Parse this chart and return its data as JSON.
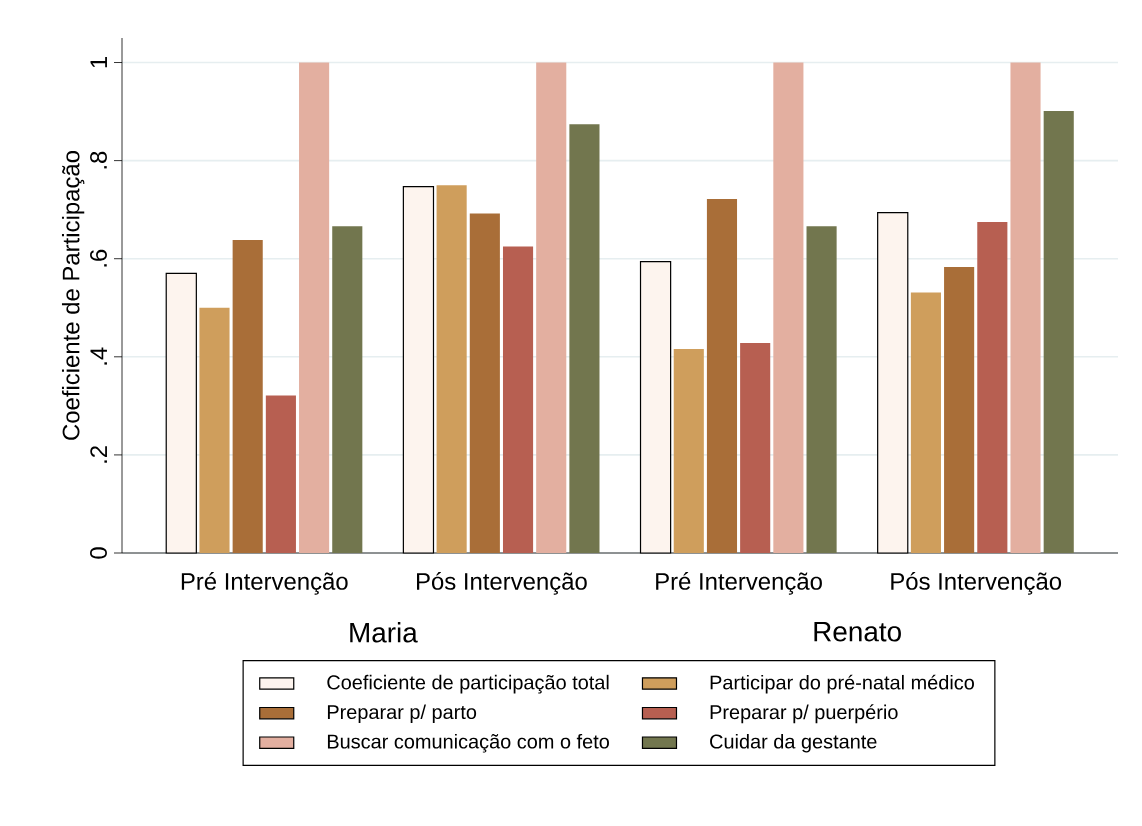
{
  "chart_data": {
    "type": "bar",
    "ylabel": "Coeficiente de Participação",
    "categories": [
      "Pré Intervenção",
      "Pós Intervenção",
      "Pré Intervenção",
      "Pós Intervenção"
    ],
    "series": [
      {
        "name": "Coeficiente de participação total",
        "color": "#fdf4ee",
        "values": [
          0.57,
          0.747,
          0.594,
          0.694
        ]
      },
      {
        "name": "Participar do pré-natal médico",
        "color": "#cf9e5c",
        "values": [
          0.5,
          0.75,
          0.416,
          0.531
        ]
      },
      {
        "name": "Preparar p/ parto",
        "color": "#a96e38",
        "values": [
          0.638,
          0.692,
          0.722,
          0.583
        ]
      },
      {
        "name": "Preparar p/ puerpério",
        "color": "#b75f51",
        "values": [
          0.321,
          0.625,
          0.428,
          0.675
        ]
      },
      {
        "name": "Buscar comunicação com o feto",
        "color": "#e3afa0",
        "values": [
          1,
          1,
          1,
          1
        ]
      },
      {
        "name": "Cuidar da gestante",
        "color": "#72764e",
        "values": [
          0.666,
          0.874,
          0.666,
          0.901
        ]
      }
    ],
    "ylim": [
      0,
      1.05
    ],
    "yticks": [
      0,
      {
        "value": 0.2,
        "label": ".2"
      },
      {
        "value": 0.4,
        "label": ".4"
      },
      {
        "value": 0.6,
        "label": ".6"
      },
      {
        "value": 0.8,
        "label": ".8"
      },
      1
    ],
    "grid": "y",
    "legend": "bottom",
    "annotations": [
      "Maria",
      "Renato"
    ]
  }
}
